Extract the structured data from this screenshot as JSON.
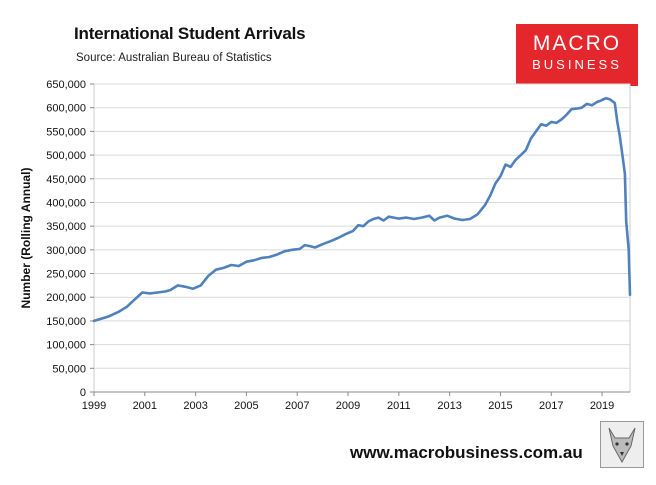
{
  "header": {
    "title": "International Student Arrivals",
    "source": "Source: Australian Bureau of Statistics"
  },
  "logo": {
    "line1": "MACRO",
    "line2": "BUSINESS"
  },
  "footer": {
    "url": "www.macrobusiness.com.au"
  },
  "chart_data": {
    "type": "line",
    "title": "International Student Arrivals",
    "subtitle": "Source: Australian Bureau of Statistics",
    "ylabel": "Number (Rolling Annual)",
    "xlabel": "",
    "xlim": [
      1999,
      2020.1
    ],
    "ylim": [
      0,
      650000
    ],
    "x_ticks": [
      "1999",
      "2001",
      "2003",
      "2005",
      "2007",
      "2009",
      "2011",
      "2013",
      "2015",
      "2017",
      "2019"
    ],
    "y_ticks": [
      "0",
      "50,000",
      "100,000",
      "150,000",
      "200,000",
      "250,000",
      "300,000",
      "350,000",
      "400,000",
      "450,000",
      "500,000",
      "550,000",
      "600,000",
      "650,000"
    ],
    "grid": "horizontal",
    "legend": "none",
    "color": "#4f81bd",
    "series": [
      {
        "points": [
          [
            1999.0,
            150000
          ],
          [
            1999.3,
            155000
          ],
          [
            1999.6,
            160000
          ],
          [
            2000.0,
            170000
          ],
          [
            2000.3,
            180000
          ],
          [
            2000.6,
            195000
          ],
          [
            2000.9,
            210000
          ],
          [
            2001.2,
            208000
          ],
          [
            2001.5,
            210000
          ],
          [
            2001.8,
            212000
          ],
          [
            2002.0,
            215000
          ],
          [
            2002.3,
            225000
          ],
          [
            2002.6,
            222000
          ],
          [
            2002.9,
            218000
          ],
          [
            2003.2,
            225000
          ],
          [
            2003.5,
            245000
          ],
          [
            2003.8,
            258000
          ],
          [
            2004.1,
            262000
          ],
          [
            2004.4,
            268000
          ],
          [
            2004.7,
            266000
          ],
          [
            2005.0,
            275000
          ],
          [
            2005.3,
            278000
          ],
          [
            2005.6,
            283000
          ],
          [
            2005.9,
            285000
          ],
          [
            2006.2,
            290000
          ],
          [
            2006.5,
            297000
          ],
          [
            2006.8,
            300000
          ],
          [
            2007.1,
            302000
          ],
          [
            2007.3,
            310000
          ],
          [
            2007.5,
            308000
          ],
          [
            2007.7,
            305000
          ],
          [
            2008.0,
            312000
          ],
          [
            2008.3,
            318000
          ],
          [
            2008.6,
            325000
          ],
          [
            2008.9,
            333000
          ],
          [
            2009.2,
            340000
          ],
          [
            2009.4,
            352000
          ],
          [
            2009.6,
            350000
          ],
          [
            2009.8,
            360000
          ],
          [
            2010.0,
            365000
          ],
          [
            2010.2,
            368000
          ],
          [
            2010.4,
            362000
          ],
          [
            2010.6,
            370000
          ],
          [
            2010.8,
            368000
          ],
          [
            2011.0,
            366000
          ],
          [
            2011.3,
            368000
          ],
          [
            2011.6,
            365000
          ],
          [
            2011.9,
            368000
          ],
          [
            2012.2,
            372000
          ],
          [
            2012.4,
            362000
          ],
          [
            2012.6,
            368000
          ],
          [
            2012.9,
            372000
          ],
          [
            2013.2,
            366000
          ],
          [
            2013.5,
            363000
          ],
          [
            2013.8,
            365000
          ],
          [
            2014.1,
            375000
          ],
          [
            2014.4,
            395000
          ],
          [
            2014.6,
            415000
          ],
          [
            2014.8,
            440000
          ],
          [
            2015.0,
            455000
          ],
          [
            2015.2,
            480000
          ],
          [
            2015.4,
            475000
          ],
          [
            2015.6,
            490000
          ],
          [
            2015.8,
            500000
          ],
          [
            2016.0,
            510000
          ],
          [
            2016.2,
            535000
          ],
          [
            2016.4,
            550000
          ],
          [
            2016.6,
            565000
          ],
          [
            2016.8,
            562000
          ],
          [
            2017.0,
            570000
          ],
          [
            2017.2,
            568000
          ],
          [
            2017.4,
            575000
          ],
          [
            2017.6,
            585000
          ],
          [
            2017.8,
            597000
          ],
          [
            2018.0,
            598000
          ],
          [
            2018.2,
            600000
          ],
          [
            2018.4,
            608000
          ],
          [
            2018.6,
            605000
          ],
          [
            2018.8,
            612000
          ],
          [
            2018.95,
            615000
          ],
          [
            2019.15,
            620000
          ],
          [
            2019.3,
            618000
          ],
          [
            2019.5,
            610000
          ],
          [
            2019.6,
            570000
          ],
          [
            2019.7,
            540000
          ],
          [
            2019.8,
            500000
          ],
          [
            2019.9,
            460000
          ],
          [
            2019.95,
            360000
          ],
          [
            2020.05,
            300000
          ],
          [
            2020.1,
            205000
          ]
        ]
      }
    ]
  }
}
